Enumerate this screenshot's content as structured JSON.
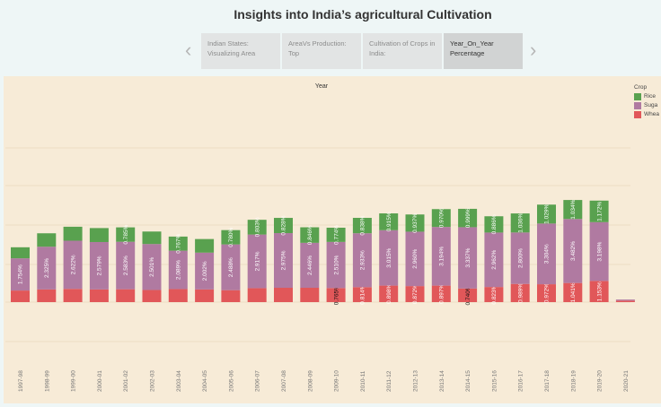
{
  "header": {
    "title": "Insights into India’s agricultural Cultivation"
  },
  "tabs": [
    {
      "line1": "Indian States:",
      "line2": "Visualizing Area"
    },
    {
      "line1": "AreaVs Production:",
      "line2": "Top"
    },
    {
      "line1": "Cultivation of Crops in",
      "line2": "India:"
    },
    {
      "line1": "Year_On_Year",
      "line2": "Percentage"
    }
  ],
  "nav": {
    "prev_icon": "chevron-left-icon",
    "next_icon": "chevron-right-icon"
  },
  "legend": {
    "title": "Crop",
    "items": [
      {
        "label": "Rice",
        "color": "#59a14f"
      },
      {
        "label": "Suga",
        "color": "#b07aa1"
      },
      {
        "label": "Whea",
        "color": "#e15759"
      }
    ]
  },
  "chart_data": {
    "type": "bar",
    "stacked": true,
    "title": "Year",
    "legend_title": "Crop",
    "legend_position": "right",
    "grid": true,
    "categories": [
      "1997-98",
      "1998-99",
      "1999-00",
      "2000-01",
      "2001-02",
      "2002-03",
      "2003-04",
      "2004-05",
      "2005-06",
      "2006-07",
      "2007-08",
      "2008-09",
      "2009-10",
      "2010-11",
      "2011-12",
      "2012-13",
      "2013-14",
      "2014-15",
      "2015-16",
      "2016-17",
      "2017-18",
      "2018-19",
      "2019-20",
      "2020-21"
    ],
    "series": [
      {
        "name": "Wheat",
        "color": "#e15759",
        "values": [
          0.63,
          0.69,
          0.72,
          0.69,
          0.7,
          0.66,
          0.71,
          0.69,
          0.65,
          0.76,
          0.78,
          0.78,
          0.765,
          0.814,
          0.898,
          0.872,
          0.897,
          0.74,
          0.823,
          0.989,
          0.972,
          1.041,
          1.153,
          0.08
        ],
        "labels": [
          "",
          "",
          "",
          "",
          "",
          "",
          "",
          "",
          "",
          "",
          "",
          "",
          "0.765%",
          "0.814%",
          "0.898%",
          "0.872%",
          "0.897%",
          "0.740%",
          "0.823%",
          "0.989%",
          "0.972%",
          "1.041%",
          "1.153%",
          ""
        ]
      },
      {
        "name": "Sugarcane",
        "color": "#b07aa1",
        "values": [
          1.754,
          2.325,
          2.622,
          2.579,
          2.583,
          2.501,
          2.089,
          2.002,
          2.488,
          2.917,
          2.975,
          2.446,
          2.51,
          2.933,
          3.015,
          2.96,
          3.194,
          3.337,
          2.962,
          2.8,
          3.304,
          3.482,
          3.198,
          0.06
        ],
        "labels": [
          "1.754%",
          "2.325%",
          "2.622%",
          "2.579%",
          "2.583%",
          "2.501%",
          "2.089%",
          "2.002%",
          "2.488%",
          "2.917%",
          "2.975%",
          "2.446%",
          "2.510%",
          "2.933%",
          "3.015%",
          "2.960%",
          "3.194%",
          "3.337%",
          "2.962%",
          "2.800%",
          "3.304%",
          "3.482%",
          "3.198%",
          ""
        ]
      },
      {
        "name": "Rice",
        "color": "#59a14f",
        "values": [
          0.6,
          0.73,
          0.76,
          0.76,
          0.785,
          0.68,
          0.767,
          0.74,
          0.78,
          0.803,
          0.828,
          0.846,
          0.774,
          0.838,
          0.915,
          0.937,
          0.97,
          0.999,
          0.886,
          1.036,
          1.029,
          1.034,
          1.172,
          0
        ],
        "labels": [
          "",
          "",
          "",
          "",
          "0.785%",
          "",
          "0.767%",
          "",
          "0.780%",
          "0.803%",
          "0.828%",
          "0.846%",
          "0.774%",
          "0.838%",
          "0.915%",
          "0.937%",
          "0.970%",
          "0.999%",
          "0.886%",
          "1.036%",
          "1.029%",
          "1.034%",
          "1.172%",
          ""
        ]
      }
    ]
  }
}
